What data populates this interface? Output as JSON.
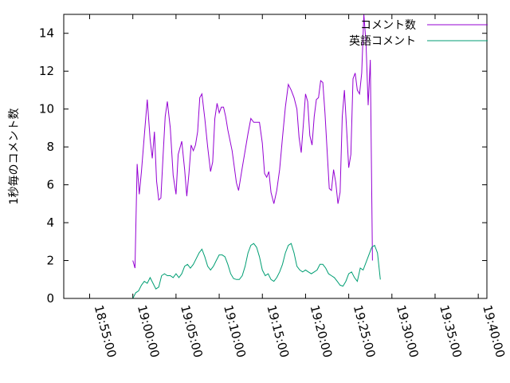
{
  "chart_data": {
    "type": "line",
    "title": "",
    "xlabel": "",
    "ylabel": "1秒毎のコメント数",
    "x_unit": "time (HH:MM:SS)",
    "xlim": [
      "18:52:00",
      "19:41:00"
    ],
    "ylim": [
      0,
      15
    ],
    "x_ticks": [
      "18:55:00",
      "19:00:00",
      "19:05:00",
      "19:10:00",
      "19:15:00",
      "19:20:00",
      "19:25:00",
      "19:30:00",
      "19:35:00",
      "19:40:00"
    ],
    "y_ticks": [
      "0",
      "2",
      "4",
      "6",
      "8",
      "10",
      "12",
      "14"
    ],
    "grid": false,
    "legend": "top-right",
    "series": [
      {
        "name": "コメント数",
        "color": "#9400d3",
        "points": [
          [
            "19:00:00",
            2.0
          ],
          [
            "19:00:15",
            1.6
          ],
          [
            "19:00:30",
            7.1
          ],
          [
            "19:00:45",
            5.5
          ],
          [
            "19:01:00",
            6.7
          ],
          [
            "19:01:20",
            8.6
          ],
          [
            "19:01:40",
            10.5
          ],
          [
            "19:02:00",
            8.4
          ],
          [
            "19:02:15",
            7.4
          ],
          [
            "19:02:30",
            8.8
          ],
          [
            "19:02:45",
            6.2
          ],
          [
            "19:03:00",
            5.2
          ],
          [
            "19:03:15",
            5.3
          ],
          [
            "19:03:30",
            7.5
          ],
          [
            "19:03:45",
            9.6
          ],
          [
            "19:04:00",
            10.4
          ],
          [
            "19:04:20",
            9.0
          ],
          [
            "19:04:40",
            6.5
          ],
          [
            "19:05:00",
            5.5
          ],
          [
            "19:05:15",
            7.6
          ],
          [
            "19:05:40",
            8.3
          ],
          [
            "19:06:00",
            6.8
          ],
          [
            "19:06:15",
            5.4
          ],
          [
            "19:06:30",
            6.6
          ],
          [
            "19:06:45",
            8.1
          ],
          [
            "19:07:00",
            7.8
          ],
          [
            "19:07:15",
            8.1
          ],
          [
            "19:07:30",
            8.8
          ],
          [
            "19:07:45",
            10.6
          ],
          [
            "19:08:00",
            10.8
          ],
          [
            "19:08:20",
            9.5
          ],
          [
            "19:08:40",
            8.0
          ],
          [
            "19:09:00",
            6.7
          ],
          [
            "19:09:15",
            7.2
          ],
          [
            "19:09:30",
            9.5
          ],
          [
            "19:09:45",
            10.3
          ],
          [
            "19:10:00",
            9.8
          ],
          [
            "19:10:15",
            10.1
          ],
          [
            "19:10:30",
            10.1
          ],
          [
            "19:10:45",
            9.6
          ],
          [
            "19:11:00",
            8.9
          ],
          [
            "19:11:30",
            7.8
          ],
          [
            "19:12:00",
            6.1
          ],
          [
            "19:12:15",
            5.7
          ],
          [
            "19:12:40",
            6.9
          ],
          [
            "19:13:00",
            7.8
          ],
          [
            "19:13:20",
            8.7
          ],
          [
            "19:13:40",
            9.5
          ],
          [
            "19:14:00",
            9.3
          ],
          [
            "19:14:20",
            9.3
          ],
          [
            "19:14:40",
            9.3
          ],
          [
            "19:15:00",
            8.2
          ],
          [
            "19:15:15",
            6.6
          ],
          [
            "19:15:30",
            6.4
          ],
          [
            "19:15:45",
            6.7
          ],
          [
            "19:16:00",
            5.6
          ],
          [
            "19:16:20",
            5.0
          ],
          [
            "19:16:40",
            5.7
          ],
          [
            "19:17:00",
            6.8
          ],
          [
            "19:17:20",
            8.5
          ],
          [
            "19:17:40",
            10.1
          ],
          [
            "19:18:00",
            11.3
          ],
          [
            "19:18:20",
            11.0
          ],
          [
            "19:18:40",
            10.6
          ],
          [
            "19:19:00",
            10.0
          ],
          [
            "19:19:15",
            8.5
          ],
          [
            "19:19:30",
            7.7
          ],
          [
            "19:19:45",
            9.2
          ],
          [
            "19:20:00",
            10.8
          ],
          [
            "19:20:15",
            10.4
          ],
          [
            "19:20:30",
            8.6
          ],
          [
            "19:20:45",
            8.1
          ],
          [
            "19:21:00",
            9.6
          ],
          [
            "19:21:15",
            10.5
          ],
          [
            "19:21:30",
            10.6
          ],
          [
            "19:21:45",
            11.5
          ],
          [
            "19:22:00",
            11.4
          ],
          [
            "19:22:15",
            9.8
          ],
          [
            "19:22:30",
            7.8
          ],
          [
            "19:22:45",
            5.8
          ],
          [
            "19:23:00",
            5.7
          ],
          [
            "19:23:15",
            6.8
          ],
          [
            "19:23:30",
            6.1
          ],
          [
            "19:23:45",
            5.0
          ],
          [
            "19:24:00",
            5.6
          ],
          [
            "19:24:15",
            9.6
          ],
          [
            "19:24:30",
            11.0
          ],
          [
            "19:24:45",
            9.0
          ],
          [
            "19:25:00",
            6.9
          ],
          [
            "19:25:15",
            7.6
          ],
          [
            "19:25:30",
            11.6
          ],
          [
            "19:25:45",
            11.9
          ],
          [
            "19:26:00",
            11.0
          ],
          [
            "19:26:15",
            10.8
          ],
          [
            "19:26:30",
            11.9
          ],
          [
            "19:26:45",
            15.0
          ],
          [
            "19:27:00",
            13.5
          ],
          [
            "19:27:15",
            10.2
          ],
          [
            "19:27:30",
            12.6
          ],
          [
            "19:27:45",
            2.0
          ]
        ]
      },
      {
        "name": "英語コメント",
        "color": "#009e73",
        "points": [
          [
            "19:00:00",
            0.0
          ],
          [
            "19:00:20",
            0.3
          ],
          [
            "19:00:40",
            0.4
          ],
          [
            "19:01:00",
            0.7
          ],
          [
            "19:01:20",
            0.9
          ],
          [
            "19:01:40",
            0.8
          ],
          [
            "19:02:00",
            1.1
          ],
          [
            "19:02:20",
            0.8
          ],
          [
            "19:02:40",
            0.5
          ],
          [
            "19:03:00",
            0.6
          ],
          [
            "19:03:20",
            1.2
          ],
          [
            "19:03:40",
            1.3
          ],
          [
            "19:04:00",
            1.2
          ],
          [
            "19:04:20",
            1.2
          ],
          [
            "19:04:40",
            1.1
          ],
          [
            "19:05:00",
            1.3
          ],
          [
            "19:05:20",
            1.1
          ],
          [
            "19:05:40",
            1.3
          ],
          [
            "19:06:00",
            1.7
          ],
          [
            "19:06:20",
            1.8
          ],
          [
            "19:06:40",
            1.6
          ],
          [
            "19:07:00",
            1.8
          ],
          [
            "19:07:20",
            2.1
          ],
          [
            "19:07:40",
            2.4
          ],
          [
            "19:08:00",
            2.6
          ],
          [
            "19:08:20",
            2.2
          ],
          [
            "19:08:40",
            1.7
          ],
          [
            "19:09:00",
            1.5
          ],
          [
            "19:09:20",
            1.7
          ],
          [
            "19:09:40",
            2.0
          ],
          [
            "19:10:00",
            2.3
          ],
          [
            "19:10:20",
            2.3
          ],
          [
            "19:10:40",
            2.2
          ],
          [
            "19:11:00",
            1.8
          ],
          [
            "19:11:20",
            1.3
          ],
          [
            "19:11:40",
            1.05
          ],
          [
            "19:12:00",
            1.0
          ],
          [
            "19:12:20",
            1.0
          ],
          [
            "19:12:40",
            1.2
          ],
          [
            "19:13:00",
            1.7
          ],
          [
            "19:13:20",
            2.4
          ],
          [
            "19:13:40",
            2.8
          ],
          [
            "19:14:00",
            2.9
          ],
          [
            "19:14:20",
            2.7
          ],
          [
            "19:14:40",
            2.2
          ],
          [
            "19:15:00",
            1.5
          ],
          [
            "19:15:20",
            1.2
          ],
          [
            "19:15:40",
            1.3
          ],
          [
            "19:16:00",
            1.0
          ],
          [
            "19:16:20",
            0.9
          ],
          [
            "19:16:40",
            1.1
          ],
          [
            "19:17:00",
            1.4
          ],
          [
            "19:17:20",
            1.8
          ],
          [
            "19:17:40",
            2.4
          ],
          [
            "19:18:00",
            2.8
          ],
          [
            "19:18:20",
            2.9
          ],
          [
            "19:18:40",
            2.4
          ],
          [
            "19:19:00",
            1.7
          ],
          [
            "19:19:20",
            1.5
          ],
          [
            "19:19:40",
            1.4
          ],
          [
            "19:20:00",
            1.5
          ],
          [
            "19:20:20",
            1.4
          ],
          [
            "19:20:40",
            1.3
          ],
          [
            "19:21:00",
            1.4
          ],
          [
            "19:21:20",
            1.5
          ],
          [
            "19:21:40",
            1.8
          ],
          [
            "19:22:00",
            1.8
          ],
          [
            "19:22:20",
            1.6
          ],
          [
            "19:22:40",
            1.3
          ],
          [
            "19:23:00",
            1.2
          ],
          [
            "19:23:20",
            1.1
          ],
          [
            "19:23:40",
            0.9
          ],
          [
            "19:24:00",
            0.7
          ],
          [
            "19:24:20",
            0.65
          ],
          [
            "19:24:40",
            0.9
          ],
          [
            "19:25:00",
            1.3
          ],
          [
            "19:25:20",
            1.4
          ],
          [
            "19:25:40",
            1.1
          ],
          [
            "19:26:00",
            0.9
          ],
          [
            "19:26:20",
            1.6
          ],
          [
            "19:26:40",
            1.5
          ],
          [
            "19:27:00",
            1.9
          ],
          [
            "19:27:20",
            2.3
          ],
          [
            "19:27:40",
            2.7
          ],
          [
            "19:28:00",
            2.8
          ],
          [
            "19:28:20",
            2.4
          ],
          [
            "19:28:40",
            1.0
          ]
        ]
      }
    ]
  }
}
